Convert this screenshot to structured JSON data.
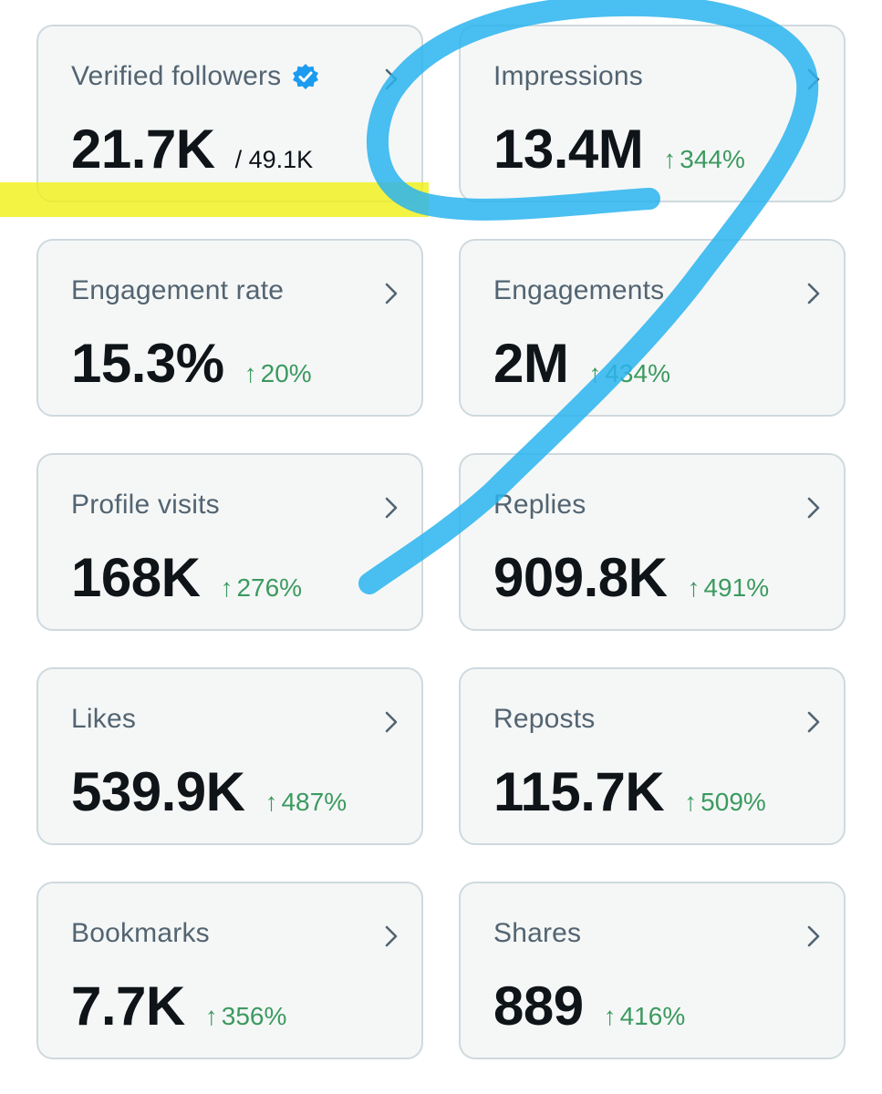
{
  "cards": [
    {
      "label": "Verified followers",
      "value": "21.7K",
      "total": "/ 49.1K",
      "verified_icon": "verified-badge-icon",
      "chevron_icon": "chevron-right-icon"
    },
    {
      "label": "Impressions",
      "value": "13.4M",
      "delta": "344%",
      "chevron_icon": "chevron-right-icon"
    },
    {
      "label": "Engagement rate",
      "value": "15.3%",
      "delta": "20%",
      "chevron_icon": "chevron-right-icon"
    },
    {
      "label": "Engagements",
      "value": "2M",
      "delta": "434%",
      "chevron_icon": "chevron-right-icon"
    },
    {
      "label": "Profile visits",
      "value": "168K",
      "delta": "276%",
      "chevron_icon": "chevron-right-icon"
    },
    {
      "label": "Replies",
      "value": "909.8K",
      "delta": "491%",
      "chevron_icon": "chevron-right-icon"
    },
    {
      "label": "Likes",
      "value": "539.9K",
      "delta": "487%",
      "chevron_icon": "chevron-right-icon"
    },
    {
      "label": "Reposts",
      "value": "115.7K",
      "delta": "509%",
      "chevron_icon": "chevron-right-icon"
    },
    {
      "label": "Bookmarks",
      "value": "7.7K",
      "delta": "356%",
      "chevron_icon": "chevron-right-icon"
    },
    {
      "label": "Shares",
      "value": "889",
      "delta": "416%",
      "chevron_icon": "chevron-right-icon"
    }
  ],
  "delta_arrow": "↑",
  "colors": {
    "card_bg": "#f5f7f7",
    "card_border": "#cfd9de",
    "label": "#536471",
    "value": "#0f1419",
    "delta_positive": "#3c9a5f",
    "verified_blue": "#1d9bf0",
    "highlight_yellow": "#f0f014",
    "pen_blue": "#2ab4ef"
  }
}
